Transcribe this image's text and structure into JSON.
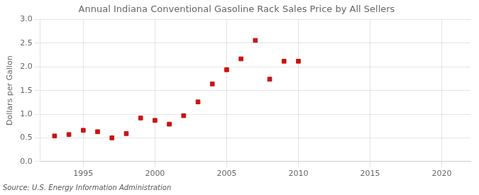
{
  "chart_data": {
    "type": "scatter",
    "title": "Annual Indiana Conventional Gasoline Rack Sales Price by All Sellers",
    "ylabel": "Dollars per Gallon",
    "source": "Source: U.S. Energy Information Administration",
    "x": [
      1993,
      1994,
      1995,
      1996,
      1997,
      1998,
      1999,
      2000,
      2001,
      2002,
      2003,
      2004,
      2005,
      2006,
      2007,
      2008,
      2009,
      2010
    ],
    "values": [
      0.54,
      0.57,
      0.66,
      0.63,
      0.5,
      0.59,
      0.92,
      0.87,
      0.79,
      0.97,
      1.26,
      1.64,
      1.94,
      2.17,
      2.56,
      1.74,
      2.12,
      2.12
    ],
    "color": "#cc1111",
    "marker": "square",
    "xlim": [
      1992,
      2022
    ],
    "ylim": [
      0.0,
      3.0
    ],
    "xticks": [
      1995,
      2000,
      2005,
      2010,
      2015,
      2020
    ],
    "yticks": [
      {
        "value": 0.0,
        "label": "0.0"
      },
      0.5,
      {
        "value": 1.0,
        "label": "1.0"
      },
      1.5,
      {
        "value": 2.0,
        "label": "2.0"
      },
      2.5,
      {
        "value": 3.0,
        "label": "3.0"
      }
    ],
    "grid": true
  }
}
